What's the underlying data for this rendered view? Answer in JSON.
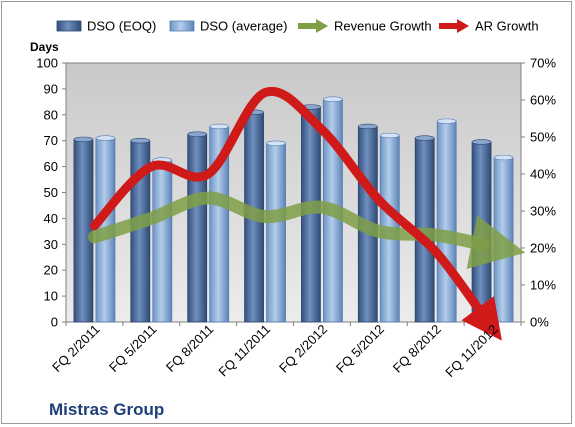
{
  "chart_data": {
    "type": "bar",
    "title": "Mistras Group",
    "ylabel": "Days",
    "ylim": [
      0,
      100
    ],
    "yticks": [
      0,
      10,
      20,
      30,
      40,
      50,
      60,
      70,
      80,
      90,
      100
    ],
    "y2lim": [
      0,
      70
    ],
    "y2ticks": [
      "0%",
      "10%",
      "20%",
      "30%",
      "40%",
      "50%",
      "60%",
      "70%"
    ],
    "legend_position": "top",
    "grid": false,
    "categories": [
      "FQ 2/2011",
      "FQ 5/2011",
      "FQ 8/2011",
      "FQ 11/2011",
      "FQ 2/2012",
      "FQ 5/2012",
      "FQ 8/2012",
      "FQ 11/2012"
    ],
    "series": [
      {
        "name": "DSO (EOQ)",
        "type": "bar",
        "axis": "left",
        "color": "#4f6d9c",
        "values": [
          70.5,
          70,
          72.5,
          81,
          83,
          75.5,
          71,
          69.5
        ]
      },
      {
        "name": "DSO (average)",
        "type": "bar",
        "axis": "left",
        "color": "#8eb2de",
        "values": [
          71,
          62.5,
          75.5,
          69,
          86,
          72,
          77.5,
          63.5
        ]
      },
      {
        "name": "Revenue Growth",
        "type": "line",
        "axis": "right",
        "color": "#7f9f47",
        "values": [
          23,
          28,
          33.5,
          28.5,
          31,
          24.5,
          23.5,
          21
        ]
      },
      {
        "name": "AR Growth",
        "type": "line",
        "axis": "right",
        "color": "#d01a1a",
        "values": [
          26,
          42,
          40,
          62,
          52,
          33,
          19,
          2
        ]
      }
    ]
  }
}
